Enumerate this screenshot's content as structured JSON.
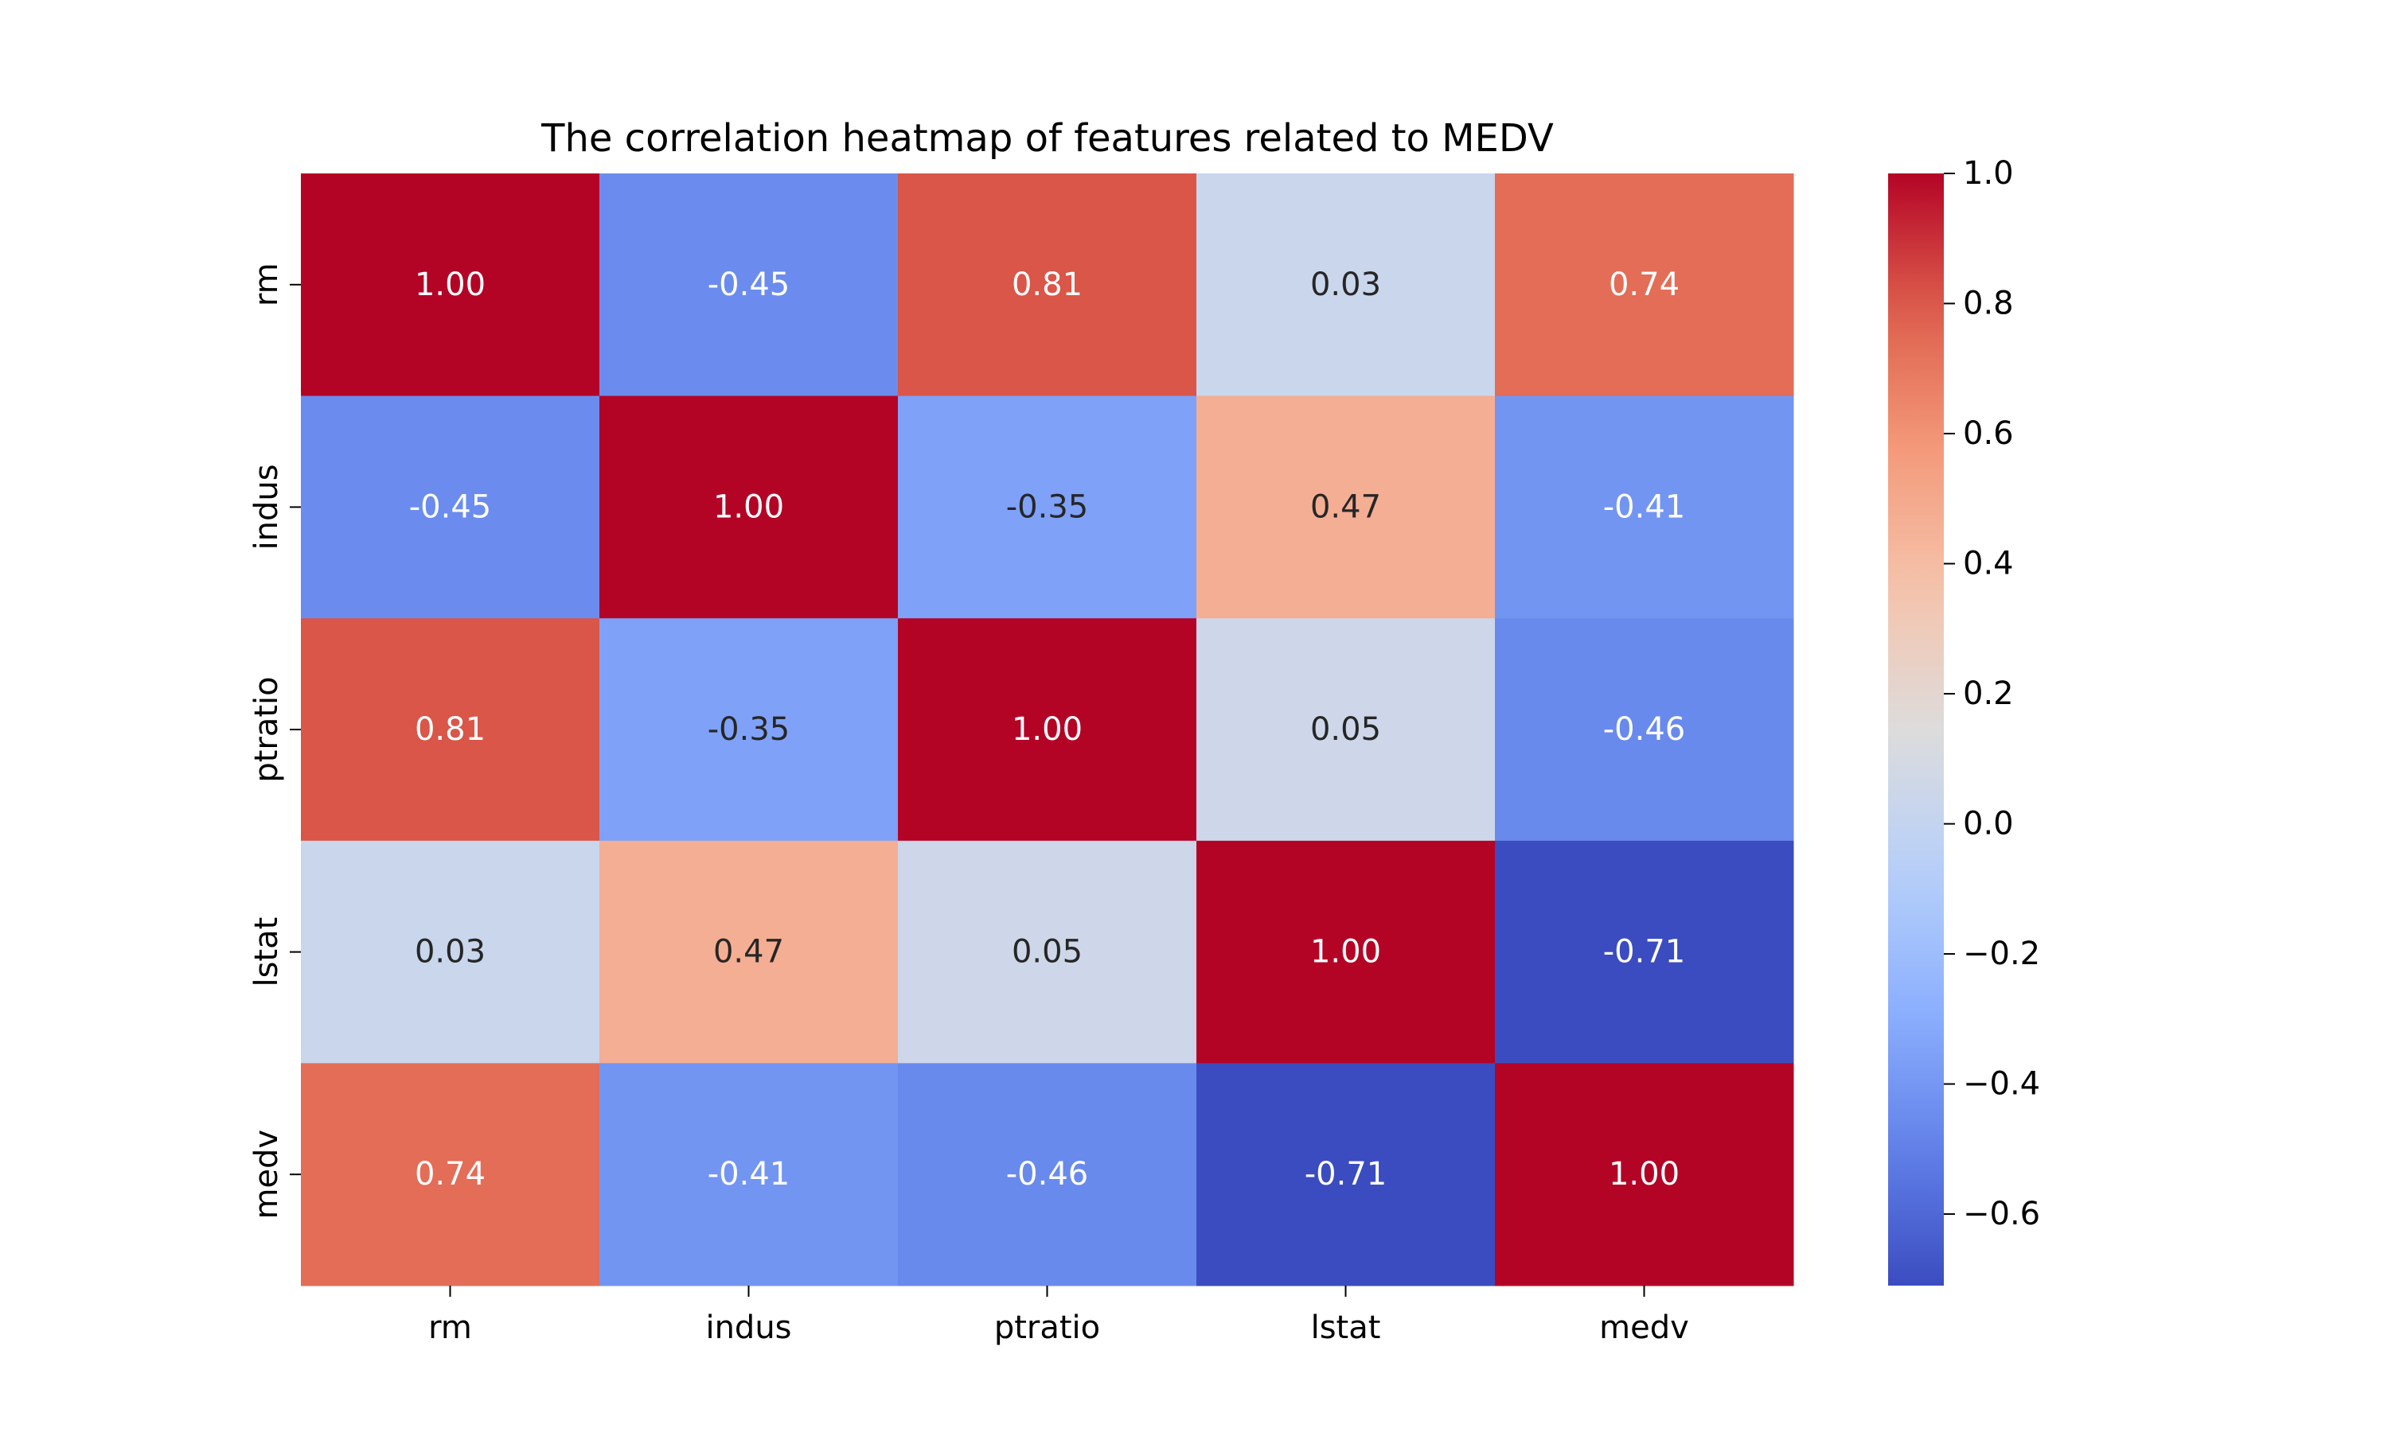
{
  "chart_data": {
    "type": "heatmap",
    "title": "The correlation heatmap of features related to MEDV",
    "xlabel": "",
    "ylabel": "",
    "x_categories": [
      "rm",
      "indus",
      "ptratio",
      "lstat",
      "medv"
    ],
    "y_categories": [
      "rm",
      "indus",
      "ptratio",
      "lstat",
      "medv"
    ],
    "values": [
      [
        1.0,
        -0.45,
        0.81,
        0.03,
        0.74
      ],
      [
        -0.45,
        1.0,
        -0.35,
        0.47,
        -0.41
      ],
      [
        0.81,
        -0.35,
        1.0,
        0.05,
        -0.46
      ],
      [
        0.03,
        0.47,
        0.05,
        1.0,
        -0.71
      ],
      [
        0.74,
        -0.41,
        -0.46,
        -0.71,
        1.0
      ]
    ],
    "cell_labels": [
      [
        "1.00",
        "-0.45",
        "0.81",
        "0.03",
        "0.74"
      ],
      [
        "-0.45",
        "1.00",
        "-0.35",
        "0.47",
        "-0.41"
      ],
      [
        "0.81",
        "-0.35",
        "1.00",
        "0.05",
        "-0.46"
      ],
      [
        "0.03",
        "0.47",
        "0.05",
        "1.00",
        "-0.71"
      ],
      [
        "0.74",
        "-0.41",
        "-0.46",
        "-0.71",
        "1.00"
      ]
    ],
    "colormap": "coolwarm",
    "color_range": [
      -0.71,
      1.0
    ],
    "colorbar": {
      "ticks": [
        1.0,
        0.8,
        0.6,
        0.4,
        0.2,
        0.0,
        -0.2,
        -0.4,
        -0.6
      ],
      "tick_labels": [
        "1.0",
        "0.8",
        "0.6",
        "0.4",
        "0.2",
        "0.0",
        "−0.2",
        "−0.4",
        "−0.6"
      ]
    },
    "grid": false,
    "colors": {
      "low": "#3b4cc0",
      "mid": "#dddcdc",
      "high": "#b40426",
      "annotation_light": "#ffffff",
      "annotation_dark": "#262626"
    }
  }
}
